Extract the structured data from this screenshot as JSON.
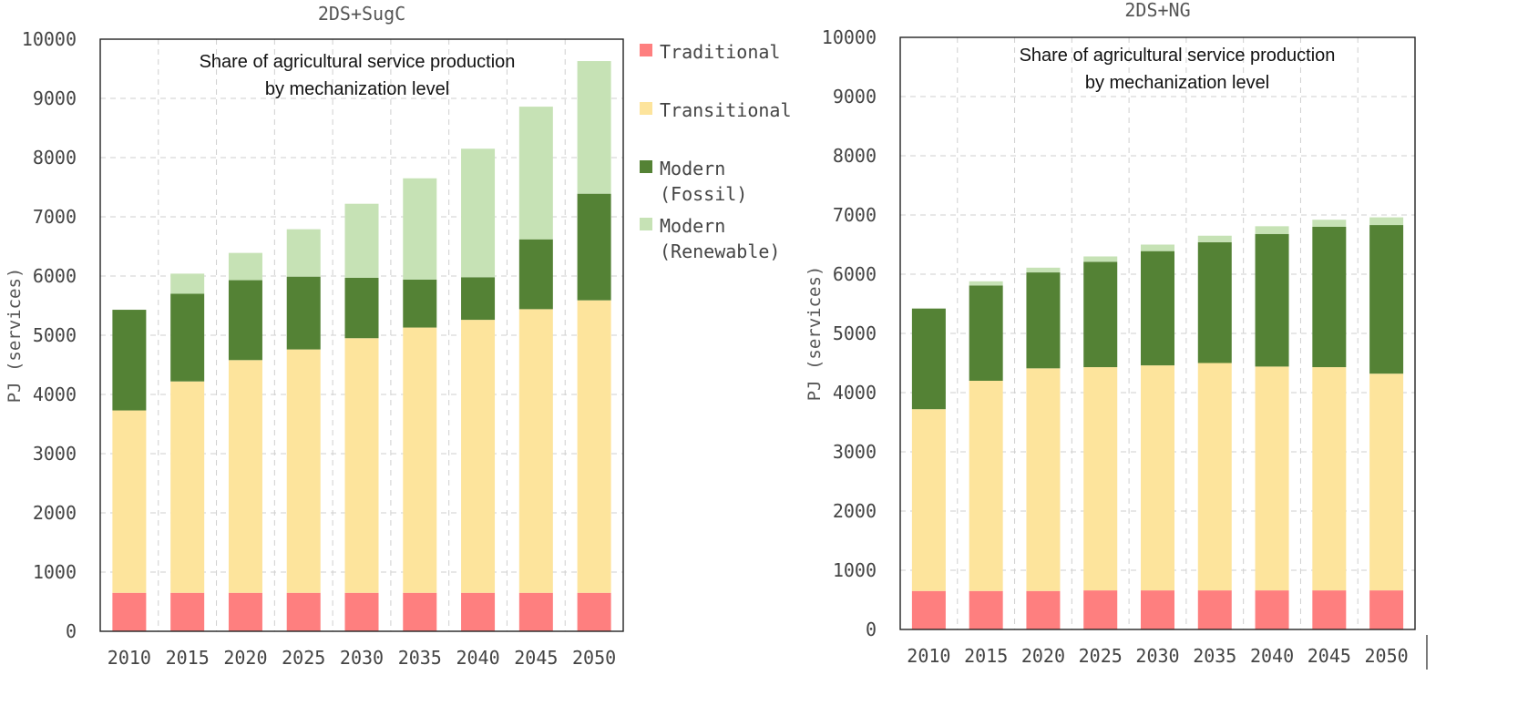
{
  "colors": {
    "traditional": "#fe7f7f",
    "transitional": "#fde49c",
    "modern_fossil": "#548235",
    "modern_renewable": "#c6e2b5"
  },
  "legend": {
    "items": [
      {
        "key": "traditional",
        "lines": [
          "Traditional"
        ]
      },
      {
        "key": "transitional",
        "lines": [
          "Transitional"
        ]
      },
      {
        "key": "modern_fossil",
        "lines": [
          "Modern",
          "(Fossil)"
        ]
      },
      {
        "key": "modern_renewable",
        "lines": [
          "Modern",
          "(Renewable)"
        ]
      }
    ]
  },
  "chart_data": [
    {
      "type": "bar",
      "stacked": true,
      "title": "2DS+SugC",
      "annotation": [
        "Share of agricultural service production",
        "by mechanization level"
      ],
      "ylabel": "PJ (services)",
      "xlabel": "",
      "ylim": [
        0,
        10000
      ],
      "yticks": [
        0,
        1000,
        2000,
        3000,
        4000,
        5000,
        6000,
        7000,
        8000,
        9000,
        10000
      ],
      "grid": true,
      "categories": [
        "2010",
        "2015",
        "2020",
        "2025",
        "2030",
        "2035",
        "2040",
        "2045",
        "2050"
      ],
      "series": [
        {
          "name": "Traditional",
          "key": "traditional",
          "values": [
            650,
            650,
            650,
            650,
            650,
            650,
            650,
            650,
            650
          ]
        },
        {
          "name": "Transitional",
          "key": "transitional",
          "values": [
            3080,
            3570,
            3930,
            4110,
            4300,
            4480,
            4610,
            4790,
            4940
          ]
        },
        {
          "name": "Modern (Fossil)",
          "key": "modern_fossil",
          "values": [
            1700,
            1480,
            1350,
            1230,
            1020,
            810,
            720,
            1180,
            1800
          ]
        },
        {
          "name": "Modern (Renewable)",
          "key": "modern_renewable",
          "values": [
            0,
            340,
            460,
            800,
            1250,
            1710,
            2170,
            2240,
            2240
          ]
        }
      ]
    },
    {
      "type": "bar",
      "stacked": true,
      "title": "2DS+NG",
      "annotation": [
        "Share of agricultural service production",
        "by mechanization level"
      ],
      "ylabel": "PJ (services)",
      "xlabel": "",
      "ylim": [
        0,
        10000
      ],
      "yticks": [
        0,
        1000,
        2000,
        3000,
        4000,
        5000,
        6000,
        7000,
        8000,
        9000,
        10000
      ],
      "grid": true,
      "categories": [
        "2010",
        "2015",
        "2020",
        "2025",
        "2030",
        "2035",
        "2040",
        "2045",
        "2050"
      ],
      "series": [
        {
          "name": "Traditional",
          "key": "traditional",
          "values": [
            650,
            650,
            650,
            660,
            660,
            660,
            660,
            660,
            660
          ]
        },
        {
          "name": "Transitional",
          "key": "transitional",
          "values": [
            3070,
            3550,
            3760,
            3770,
            3800,
            3840,
            3780,
            3770,
            3660
          ]
        },
        {
          "name": "Modern (Fossil)",
          "key": "modern_fossil",
          "values": [
            1700,
            1610,
            1620,
            1780,
            1930,
            2040,
            2240,
            2370,
            2510
          ]
        },
        {
          "name": "Modern (Renewable)",
          "key": "modern_renewable",
          "values": [
            0,
            70,
            80,
            90,
            110,
            110,
            130,
            120,
            130
          ]
        }
      ]
    }
  ]
}
